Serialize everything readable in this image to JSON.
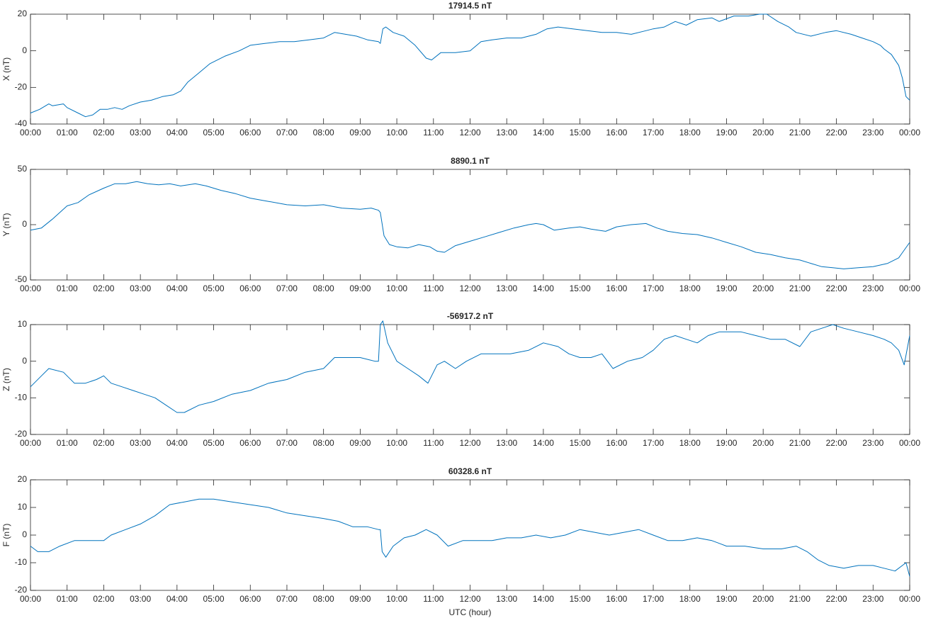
{
  "figure": {
    "xlabel": "UTC (hour)",
    "line_color": "#0072BD"
  },
  "chart_data": [
    {
      "type": "line",
      "title": "17914.5 nT",
      "ylabel": "X (nT)",
      "xlim": [
        0,
        24
      ],
      "ylim": [
        -40,
        20
      ],
      "yticks": [
        -40,
        -20,
        0,
        20
      ],
      "xtick_labels": [
        "00:00",
        "01:00",
        "02:00",
        "03:00",
        "04:00",
        "05:00",
        "06:00",
        "07:00",
        "08:00",
        "09:00",
        "10:00",
        "11:00",
        "12:00",
        "13:00",
        "14:00",
        "15:00",
        "16:00",
        "17:00",
        "18:00",
        "19:00",
        "20:00",
        "21:00",
        "22:00",
        "23:00",
        "00:00"
      ],
      "grid": false,
      "series": [
        {
          "x": [
            0,
            0.25,
            0.5,
            0.6,
            0.9,
            1.0,
            1.3,
            1.5,
            1.7,
            1.9,
            2.1,
            2.3,
            2.5,
            2.7,
            3.0,
            3.3,
            3.6,
            3.9,
            4.1,
            4.3,
            4.6,
            4.9,
            5.3,
            5.7,
            6.0,
            6.4,
            6.8,
            7.2,
            7.6,
            8.0,
            8.3,
            8.6,
            8.9,
            9.2,
            9.5,
            9.55,
            9.62,
            9.7,
            9.9,
            10.2,
            10.5,
            10.8,
            10.95,
            11.2,
            11.6,
            12.0,
            12.3,
            12.6,
            13.0,
            13.4,
            13.8,
            14.1,
            14.4,
            14.8,
            15.2,
            15.6,
            16.0,
            16.4,
            16.8,
            17.0,
            17.3,
            17.6,
            17.9,
            18.2,
            18.6,
            18.8,
            19.2,
            19.6,
            19.9,
            20.1,
            20.4,
            20.7,
            20.9,
            21.3,
            21.7,
            22.0,
            22.4,
            22.7,
            23.0,
            23.2,
            23.3,
            23.5,
            23.7,
            23.8,
            23.9,
            24.0
          ],
          "y": [
            -34,
            -32,
            -29,
            -30,
            -29,
            -31,
            -34,
            -36,
            -35,
            -32,
            -32,
            -31,
            -32,
            -30,
            -28,
            -27,
            -25,
            -24,
            -22,
            -17,
            -12,
            -7,
            -3,
            0,
            3,
            4,
            5,
            5,
            6,
            7,
            10,
            9,
            8,
            6,
            5,
            4,
            12,
            13,
            10,
            8,
            3,
            -4,
            -5,
            -1,
            -1,
            0,
            5,
            6,
            7,
            7,
            9,
            12,
            13,
            12,
            11,
            10,
            10,
            9,
            11,
            12,
            13,
            16,
            14,
            17,
            18,
            16,
            19,
            19,
            20,
            20,
            16,
            13,
            10,
            8,
            10,
            11,
            9,
            7,
            5,
            3,
            1,
            -2,
            -8,
            -15,
            -25,
            -27
          ]
        }
      ]
    },
    {
      "type": "line",
      "title": "8890.1 nT",
      "ylabel": "Y (nT)",
      "xlim": [
        0,
        24
      ],
      "ylim": [
        -50,
        50
      ],
      "yticks": [
        -50,
        0,
        50
      ],
      "xtick_labels": [
        "00:00",
        "01:00",
        "02:00",
        "03:00",
        "04:00",
        "05:00",
        "06:00",
        "07:00",
        "08:00",
        "09:00",
        "10:00",
        "11:00",
        "12:00",
        "13:00",
        "14:00",
        "15:00",
        "16:00",
        "17:00",
        "18:00",
        "19:00",
        "20:00",
        "21:00",
        "22:00",
        "23:00",
        "00:00"
      ],
      "grid": false,
      "series": [
        {
          "x": [
            0,
            0.3,
            0.6,
            1.0,
            1.3,
            1.6,
            2.0,
            2.3,
            2.6,
            2.9,
            3.2,
            3.5,
            3.8,
            4.1,
            4.5,
            4.8,
            5.2,
            5.6,
            6.0,
            6.5,
            7.0,
            7.5,
            8.0,
            8.5,
            9.0,
            9.3,
            9.5,
            9.55,
            9.65,
            9.8,
            10.0,
            10.3,
            10.6,
            10.9,
            11.1,
            11.3,
            11.6,
            12.0,
            12.4,
            12.8,
            13.2,
            13.6,
            13.8,
            14.0,
            14.3,
            14.7,
            15.0,
            15.3,
            15.7,
            16.0,
            16.4,
            16.8,
            17.1,
            17.4,
            17.8,
            18.2,
            18.6,
            19.0,
            19.4,
            19.8,
            20.2,
            20.6,
            21.0,
            21.3,
            21.6,
            21.9,
            22.2,
            22.6,
            23.0,
            23.4,
            23.7,
            24.0
          ],
          "y": [
            -5,
            -3,
            5,
            17,
            20,
            27,
            33,
            37,
            37,
            39,
            37,
            36,
            37,
            35,
            37,
            35,
            31,
            28,
            24,
            21,
            18,
            17,
            18,
            15,
            14,
            15,
            13,
            11,
            -10,
            -18,
            -20,
            -21,
            -18,
            -20,
            -24,
            -25,
            -19,
            -15,
            -11,
            -7,
            -3,
            0,
            1,
            0,
            -5,
            -3,
            -2,
            -4,
            -6,
            -2,
            0,
            1,
            -3,
            -6,
            -8,
            -9,
            -12,
            -16,
            -20,
            -25,
            -27,
            -30,
            -32,
            -35,
            -38,
            -39,
            -40,
            -39,
            -38,
            -35,
            -30,
            -16
          ]
        }
      ]
    },
    {
      "type": "line",
      "title": "-56917.2 nT",
      "ylabel": "Z (nT)",
      "xlim": [
        0,
        24
      ],
      "ylim": [
        -20,
        10
      ],
      "yticks": [
        -20,
        -10,
        0,
        10
      ],
      "xtick_labels": [
        "00:00",
        "01:00",
        "02:00",
        "03:00",
        "04:00",
        "05:00",
        "06:00",
        "07:00",
        "08:00",
        "09:00",
        "10:00",
        "11:00",
        "12:00",
        "13:00",
        "14:00",
        "15:00",
        "16:00",
        "17:00",
        "18:00",
        "19:00",
        "20:00",
        "21:00",
        "22:00",
        "23:00",
        "00:00"
      ],
      "grid": false,
      "series": [
        {
          "x": [
            0,
            0.3,
            0.5,
            0.9,
            1.2,
            1.5,
            1.8,
            2.0,
            2.2,
            2.5,
            2.8,
            3.1,
            3.4,
            3.7,
            4.0,
            4.2,
            4.6,
            5.0,
            5.5,
            6.0,
            6.5,
            7.0,
            7.5,
            8.0,
            8.3,
            8.6,
            9.0,
            9.4,
            9.5,
            9.55,
            9.62,
            9.75,
            10.0,
            10.3,
            10.6,
            10.85,
            11.1,
            11.3,
            11.6,
            11.9,
            12.3,
            12.7,
            13.1,
            13.6,
            14.0,
            14.4,
            14.7,
            15.0,
            15.3,
            15.6,
            15.9,
            16.3,
            16.7,
            17.0,
            17.3,
            17.6,
            17.9,
            18.2,
            18.5,
            18.8,
            19.1,
            19.4,
            19.8,
            20.2,
            20.6,
            21.0,
            21.3,
            21.6,
            21.9,
            22.2,
            22.6,
            23.0,
            23.3,
            23.5,
            23.7,
            23.85,
            24.0
          ],
          "y": [
            -7,
            -4,
            -2,
            -3,
            -6,
            -6,
            -5,
            -4,
            -6,
            -7,
            -8,
            -9,
            -10,
            -12,
            -14,
            -14,
            -12,
            -11,
            -9,
            -8,
            -6,
            -5,
            -3,
            -2,
            1,
            1,
            1,
            0,
            0,
            10,
            11,
            5,
            0,
            -2,
            -4,
            -6,
            -1,
            0,
            -2,
            0,
            2,
            2,
            2,
            3,
            5,
            4,
            2,
            1,
            1,
            2,
            -2,
            0,
            1,
            3,
            6,
            7,
            6,
            5,
            7,
            8,
            8,
            8,
            7,
            6,
            6,
            4,
            8,
            9,
            10,
            9,
            8,
            7,
            6,
            5,
            3,
            -1,
            7
          ]
        }
      ]
    },
    {
      "type": "line",
      "title": "60328.6 nT",
      "ylabel": "F (nT)",
      "xlim": [
        0,
        24
      ],
      "ylim": [
        -20,
        20
      ],
      "yticks": [
        -20,
        -10,
        0,
        10,
        20
      ],
      "xtick_labels": [
        "00:00",
        "01:00",
        "02:00",
        "03:00",
        "04:00",
        "05:00",
        "06:00",
        "07:00",
        "08:00",
        "09:00",
        "10:00",
        "11:00",
        "12:00",
        "13:00",
        "14:00",
        "15:00",
        "16:00",
        "17:00",
        "18:00",
        "19:00",
        "20:00",
        "21:00",
        "22:00",
        "23:00",
        "00:00"
      ],
      "grid": false,
      "series": [
        {
          "x": [
            0,
            0.2,
            0.5,
            0.8,
            1.2,
            1.6,
            2.0,
            2.2,
            2.6,
            3.0,
            3.4,
            3.8,
            4.2,
            4.6,
            5.0,
            5.5,
            6.0,
            6.5,
            7.0,
            7.5,
            8.0,
            8.4,
            8.8,
            9.2,
            9.5,
            9.55,
            9.6,
            9.7,
            9.9,
            10.2,
            10.5,
            10.8,
            11.1,
            11.4,
            11.8,
            12.2,
            12.6,
            13.0,
            13.4,
            13.8,
            14.2,
            14.6,
            15.0,
            15.4,
            15.8,
            16.2,
            16.6,
            17.0,
            17.4,
            17.8,
            18.2,
            18.6,
            19.0,
            19.5,
            20.0,
            20.5,
            20.9,
            21.2,
            21.5,
            21.8,
            22.2,
            22.6,
            23.0,
            23.3,
            23.6,
            23.9,
            24.0
          ],
          "y": [
            -4,
            -6,
            -6,
            -4,
            -2,
            -2,
            -2,
            0,
            2,
            4,
            7,
            11,
            12,
            13,
            13,
            12,
            11,
            10,
            8,
            7,
            6,
            5,
            3,
            3,
            2,
            2,
            -6,
            -8,
            -4,
            -1,
            0,
            2,
            0,
            -4,
            -2,
            -2,
            -2,
            -1,
            -1,
            0,
            -1,
            0,
            2,
            1,
            0,
            1,
            2,
            0,
            -2,
            -2,
            -1,
            -2,
            -4,
            -4,
            -5,
            -5,
            -4,
            -6,
            -9,
            -11,
            -12,
            -11,
            -11,
            -12,
            -13,
            -10,
            -15
          ]
        }
      ]
    }
  ]
}
